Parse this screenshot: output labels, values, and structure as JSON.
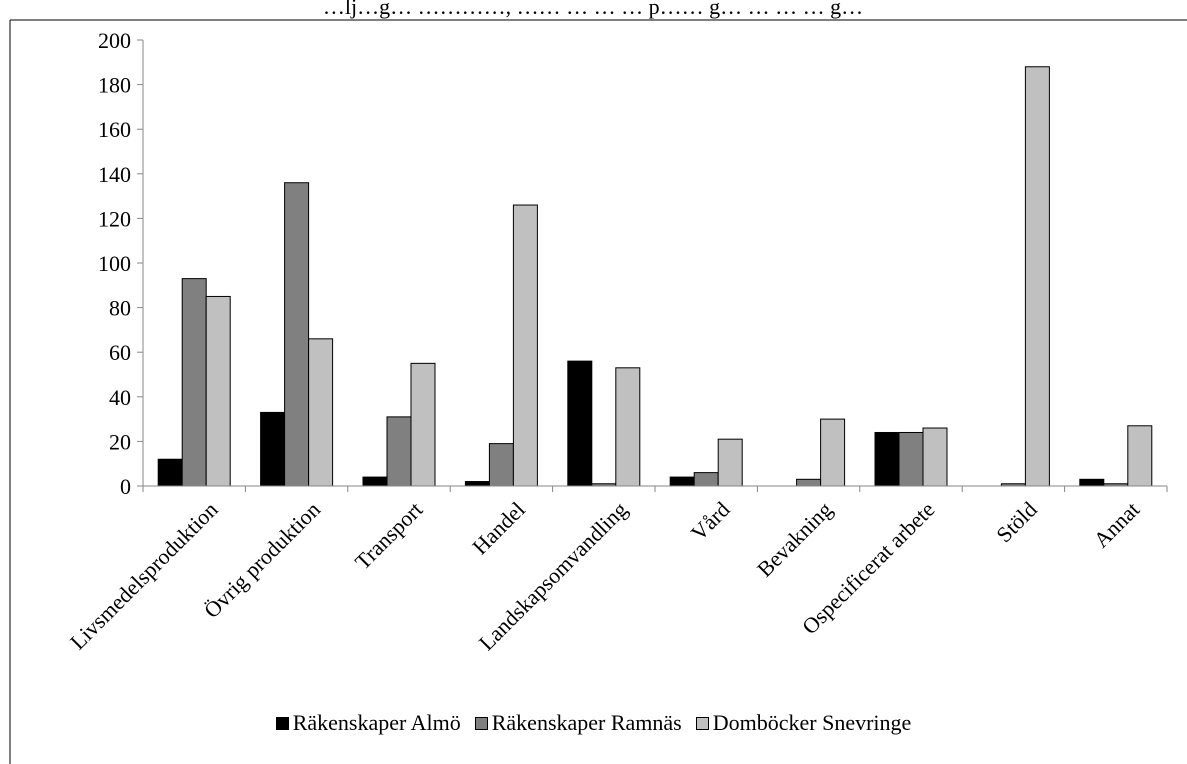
{
  "header_text": "…lj…g… …………, …… … … … p…… g… … … … g…",
  "chart_data": {
    "type": "bar",
    "categories": [
      "Livsmedelsproduktion",
      "Övrig produktion",
      "Transport",
      "Handel",
      "Landskapsomvandling",
      "Vård",
      "Bevakning",
      "Ospecificerat arbete",
      "Stöld",
      "Annat"
    ],
    "series": [
      {
        "name": "Räkenskaper Almö",
        "color": "#000000",
        "values": [
          12,
          33,
          4,
          2,
          56,
          4,
          0,
          24,
          0,
          3
        ]
      },
      {
        "name": "Räkenskaper Ramnäs",
        "color": "#808080",
        "values": [
          93,
          136,
          31,
          19,
          1,
          6,
          3,
          24,
          1,
          1
        ]
      },
      {
        "name": "Domböcker Snevringe",
        "color": "#c0c0c0",
        "values": [
          85,
          66,
          55,
          126,
          53,
          21,
          30,
          26,
          188,
          27
        ]
      }
    ],
    "ylim": [
      0,
      200
    ],
    "yticks": [
      0,
      20,
      40,
      60,
      80,
      100,
      120,
      140,
      160,
      180,
      200
    ],
    "legend_position": "bottom",
    "grid": false
  }
}
